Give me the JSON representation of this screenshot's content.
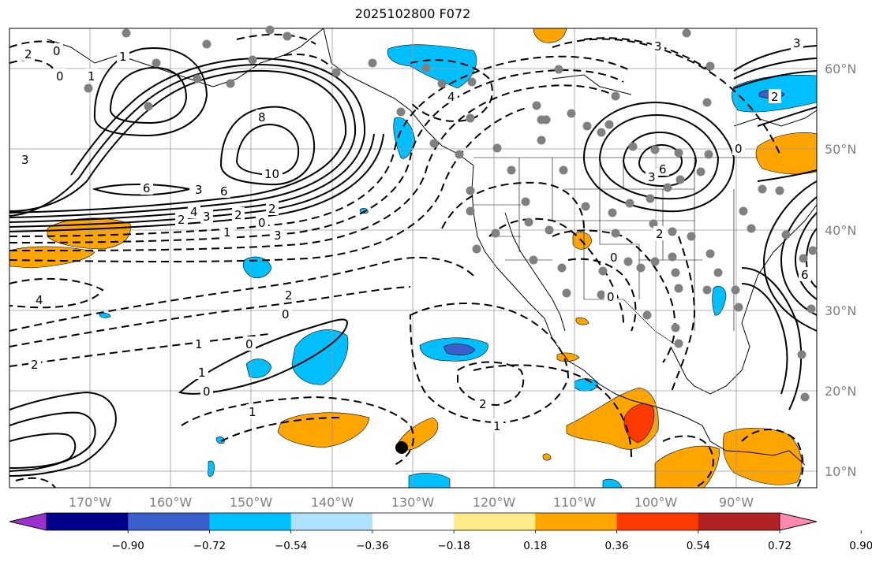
{
  "title": "2025102800 F072",
  "map": {
    "lon_labels": [
      "170°W",
      "160°W",
      "150°W",
      "140°W",
      "130°W",
      "120°W",
      "110°W",
      "100°W",
      "90°W"
    ],
    "lat_labels": [
      "60°N",
      "50°N",
      "40°N",
      "30°N",
      "20°N",
      "10°N"
    ],
    "contour_labels": [
      "2",
      "0",
      "1",
      "1",
      "0",
      "8",
      "10",
      "6",
      "6",
      "3",
      "4",
      "3",
      "2",
      "0",
      "2",
      "1",
      "3",
      "4",
      "2",
      "0",
      "0",
      "1",
      "1",
      "0",
      "2",
      "1",
      "1",
      "2",
      "2",
      "3",
      "4",
      "6",
      "0",
      "3",
      "2",
      "0",
      "0",
      "2",
      "6",
      "3",
      "3"
    ],
    "marker": "black-dot"
  },
  "colorbar": {
    "ticks": [
      "−0.90",
      "−0.72",
      "−0.54",
      "−0.36",
      "−0.18",
      "0.18",
      "0.36",
      "0.54",
      "0.72",
      "0.90"
    ],
    "colors": [
      "#9b30d0",
      "#00008b",
      "#3a5fcd",
      "#00bfff",
      "#b0e2ff",
      "#ffffff",
      "#ffeb8a",
      "#ffa500",
      "#ff3a00",
      "#b22222",
      "#ff88b0"
    ]
  }
}
